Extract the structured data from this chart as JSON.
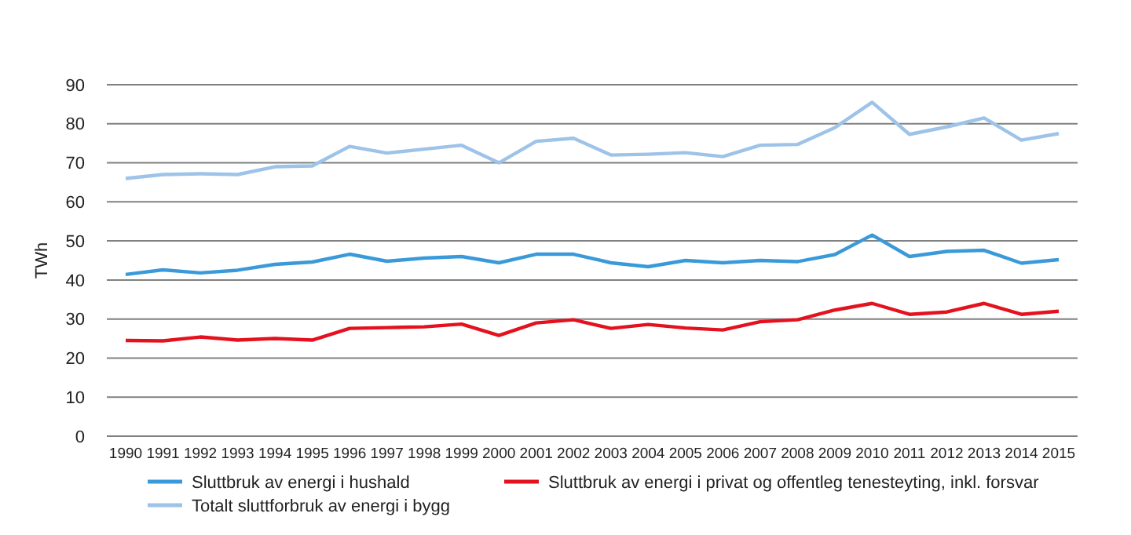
{
  "chart_data": {
    "type": "line",
    "ylabel": "TWh",
    "categories": [
      "1990",
      "1991",
      "1992",
      "1993",
      "1994",
      "1995",
      "1996",
      "1997",
      "1998",
      "1999",
      "2000",
      "2001",
      "2002",
      "2003",
      "2004",
      "2005",
      "2006",
      "2007",
      "2008",
      "2009",
      "2010",
      "2011",
      "2012",
      "2013",
      "2014",
      "2015"
    ],
    "series": [
      {
        "name": "Sluttbruk av energi i hushald",
        "color": "#3a9ad9",
        "values": [
          41.4,
          42.6,
          41.8,
          42.5,
          44,
          44.6,
          46.6,
          44.8,
          45.6,
          46,
          44.4,
          46.6,
          46.6,
          44.4,
          43.4,
          45,
          44.4,
          45,
          44.7,
          46.5,
          51.5,
          46,
          47.3,
          47.6,
          44.3,
          45.2
        ]
      },
      {
        "name": "Totalt sluttforbruk av energi i bygg",
        "color": "#9dc3e8",
        "values": [
          66,
          67,
          67.2,
          67,
          69,
          69.2,
          74.2,
          72.5,
          73.5,
          74.5,
          70,
          75.5,
          76.3,
          72,
          72.2,
          72.6,
          71.6,
          74.5,
          74.7,
          79,
          85.5,
          77.3,
          79.2,
          81.5,
          75.8,
          77.5
        ]
      },
      {
        "name": "Sluttbruk av energi i privat og offentleg tenesteyting, inkl. forsvar",
        "color": "#e3121e",
        "values": [
          24.5,
          24.4,
          25.4,
          24.6,
          25,
          24.6,
          27.6,
          27.8,
          28,
          28.7,
          25.8,
          29,
          29.8,
          27.6,
          28.6,
          27.7,
          27.2,
          29.3,
          29.8,
          32.3,
          34,
          31.2,
          31.8,
          34,
          31.2,
          32
        ]
      }
    ],
    "ylim": [
      0,
      90
    ],
    "yticks": [
      0,
      10,
      20,
      30,
      40,
      50,
      60,
      70,
      80,
      90
    ],
    "grid": "y",
    "legend": "bottom",
    "marker": "none",
    "line_style": "solid"
  }
}
